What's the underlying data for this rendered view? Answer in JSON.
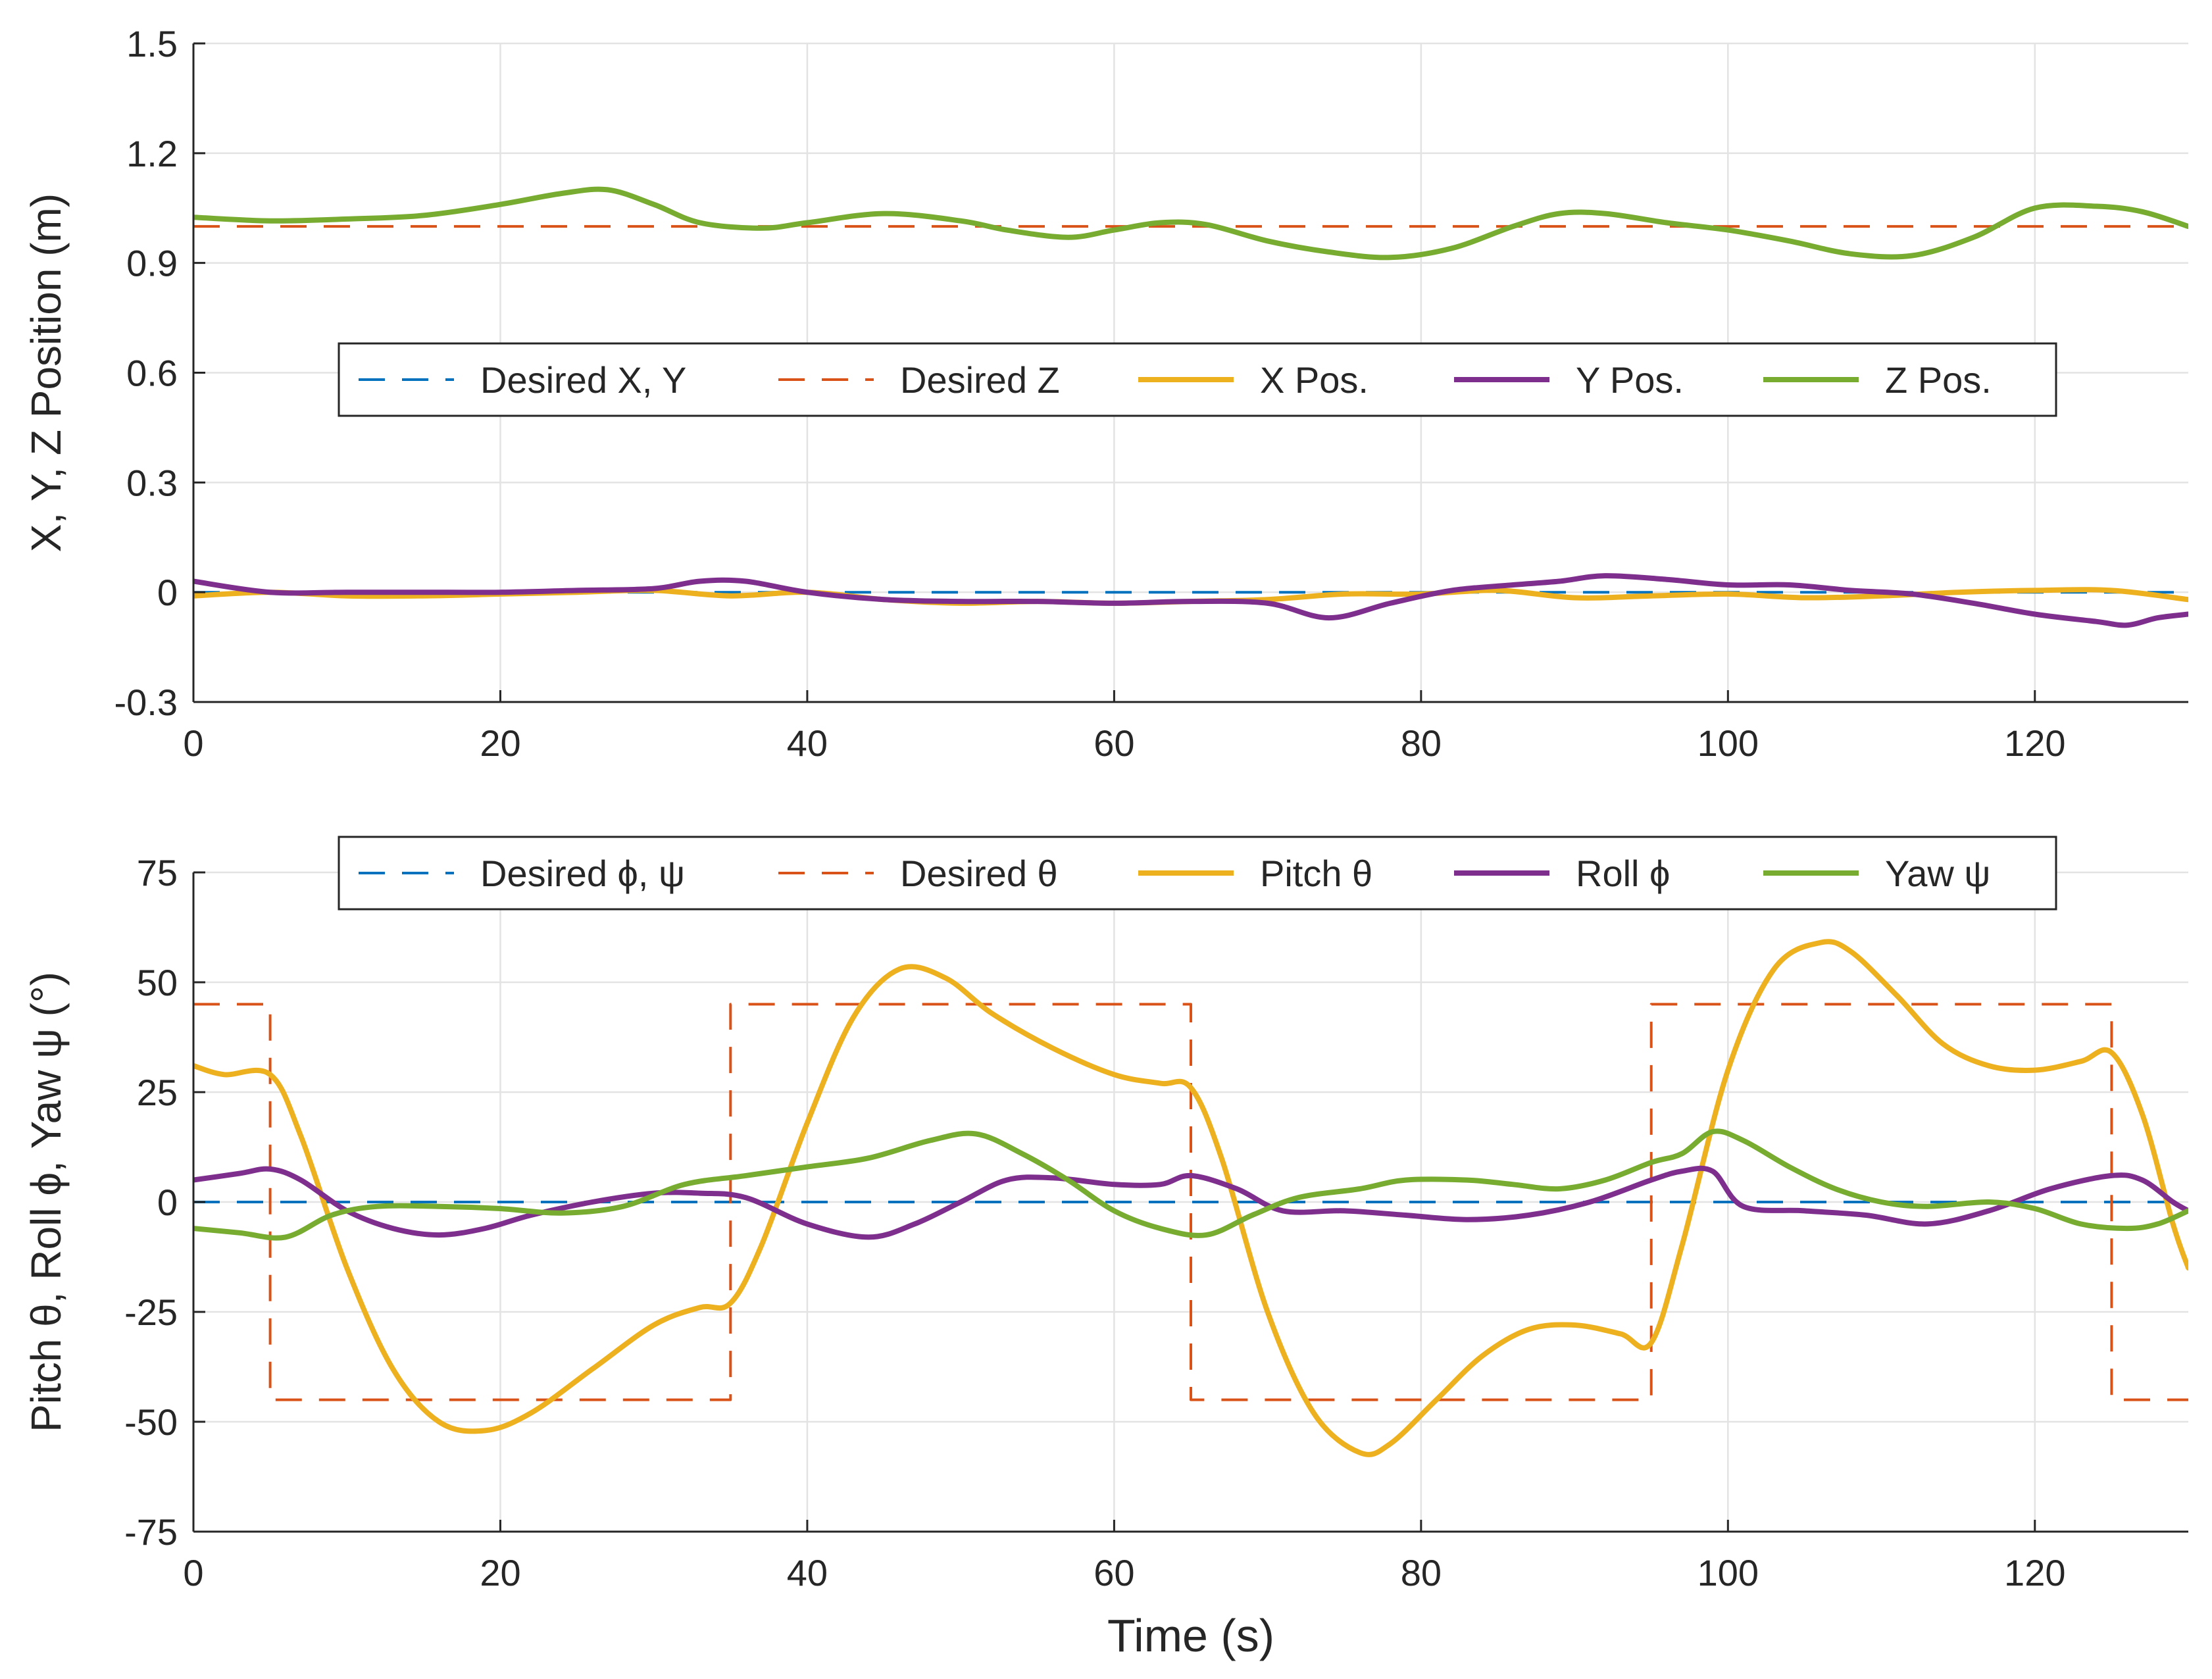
{
  "chart_data": [
    {
      "id": "position",
      "type": "line",
      "title": "",
      "xlabel": "",
      "ylabel": "X, Y, Z Position (m)",
      "xlim": [
        0,
        130
      ],
      "ylim": [
        -0.3,
        1.5
      ],
      "xticks": [
        0,
        20,
        40,
        60,
        80,
        100,
        120
      ],
      "xtick_labels": [
        "0",
        "20",
        "40",
        "60",
        "80",
        "100",
        "120"
      ],
      "yticks": [
        -0.3,
        0,
        0.3,
        0.6,
        0.9,
        1.2,
        1.5
      ],
      "ytick_labels": [
        "-0.3",
        "0",
        "0.3",
        "0.6",
        "0.9",
        "1.2",
        "1.5"
      ],
      "grid": true,
      "legend_location": "center",
      "series": [
        {
          "name": "Desired X, Y",
          "style": "dashed",
          "color": "#0072BD",
          "x": [
            0,
            130
          ],
          "y": [
            0,
            0
          ]
        },
        {
          "name": "Desired Z",
          "style": "dashed",
          "color": "#D95319",
          "x": [
            0,
            130
          ],
          "y": [
            1.0,
            1.0
          ]
        },
        {
          "name": "X Pos.",
          "style": "solid",
          "color": "#EDB120",
          "x": [
            0,
            5,
            10,
            15,
            20,
            25,
            30,
            35,
            40,
            45,
            50,
            55,
            60,
            65,
            70,
            75,
            80,
            85,
            90,
            95,
            100,
            105,
            110,
            115,
            120,
            125,
            130
          ],
          "y": [
            -0.01,
            0.0,
            -0.01,
            -0.01,
            -0.005,
            0.0,
            0.005,
            -0.01,
            0.0,
            -0.02,
            -0.03,
            -0.025,
            -0.03,
            -0.025,
            -0.02,
            -0.005,
            -0.005,
            0.005,
            -0.015,
            -0.01,
            -0.005,
            -0.015,
            -0.01,
            0.0,
            0.005,
            0.005,
            -0.02
          ]
        },
        {
          "name": "Y Pos.",
          "style": "solid",
          "color": "#7E2F8E",
          "x": [
            0,
            5,
            10,
            15,
            20,
            25,
            30,
            33,
            36,
            40,
            45,
            50,
            55,
            60,
            65,
            70,
            74,
            78,
            82,
            86,
            89,
            92,
            96,
            100,
            104,
            108,
            112,
            116,
            120,
            124,
            126,
            128,
            130
          ],
          "y": [
            0.03,
            0.0,
            0.0,
            0.0,
            0.0,
            0.005,
            0.01,
            0.03,
            0.03,
            0.0,
            -0.02,
            -0.025,
            -0.025,
            -0.03,
            -0.025,
            -0.03,
            -0.07,
            -0.03,
            0.005,
            0.02,
            0.03,
            0.045,
            0.035,
            0.02,
            0.02,
            0.005,
            -0.005,
            -0.03,
            -0.06,
            -0.08,
            -0.09,
            -0.07,
            -0.06
          ]
        },
        {
          "name": "Z Pos.",
          "style": "solid",
          "color": "#77AC30",
          "x": [
            0,
            5,
            10,
            15,
            20,
            24,
            27,
            30,
            33,
            37,
            40,
            45,
            50,
            53,
            57,
            60,
            63,
            66,
            70,
            74,
            78,
            82,
            86,
            89,
            92,
            96,
            100,
            104,
            108,
            112,
            116,
            120,
            124,
            127,
            130
          ],
          "y": [
            1.025,
            1.015,
            1.02,
            1.03,
            1.06,
            1.09,
            1.1,
            1.06,
            1.01,
            0.995,
            1.01,
            1.035,
            1.015,
            0.99,
            0.97,
            0.99,
            1.01,
            1.005,
            0.96,
            0.93,
            0.915,
            0.94,
            1.0,
            1.035,
            1.035,
            1.01,
            0.99,
            0.96,
            0.925,
            0.92,
            0.97,
            1.05,
            1.055,
            1.04,
            1.0
          ]
        }
      ]
    },
    {
      "id": "attitude",
      "type": "line",
      "title": "",
      "xlabel": "Time (s)",
      "ylabel": "Pitch θ, Roll ϕ, Yaw ψ (°)",
      "xlim": [
        0,
        130
      ],
      "ylim": [
        -75,
        75
      ],
      "xticks": [
        0,
        20,
        40,
        60,
        80,
        100,
        120
      ],
      "xtick_labels": [
        "0",
        "20",
        "40",
        "60",
        "80",
        "100",
        "120"
      ],
      "yticks": [
        -75,
        -50,
        -25,
        0,
        25,
        50,
        75
      ],
      "ytick_labels": [
        "-75",
        "-50",
        "-25",
        "0",
        "25",
        "50",
        "75"
      ],
      "grid": true,
      "legend_location": "top",
      "series": [
        {
          "name": "Desired ϕ, ψ",
          "style": "dashed",
          "color": "#0072BD",
          "x": [
            0,
            130
          ],
          "y": [
            0,
            0
          ]
        },
        {
          "name": "Desired θ",
          "style": "dashed",
          "color": "#D95319",
          "x": [
            0,
            5,
            5,
            35,
            35,
            65,
            65,
            95,
            95,
            125,
            125,
            130
          ],
          "y": [
            45,
            45,
            -45,
            -45,
            45,
            45,
            -45,
            -45,
            45,
            45,
            -45,
            -45
          ]
        },
        {
          "name": "Pitch θ",
          "style": "solid",
          "color": "#EDB120",
          "x": [
            0,
            2,
            5,
            7,
            10,
            13,
            16,
            19,
            22,
            26,
            30,
            33,
            35,
            37,
            40,
            43,
            46,
            49,
            52,
            56,
            60,
            63,
            65,
            67,
            70,
            73,
            76,
            78,
            81,
            84,
            87,
            90,
            93,
            95,
            97,
            100,
            103,
            106,
            108,
            111,
            114,
            117,
            120,
            123,
            125,
            127,
            129,
            130
          ],
          "y": [
            31,
            29,
            29,
            15,
            -15,
            -38,
            -50,
            -52,
            -48,
            -38,
            -28,
            -24,
            -23,
            -10,
            18,
            42,
            53,
            51,
            43,
            35,
            29,
            27,
            26,
            10,
            -25,
            -48,
            -57,
            -55,
            -45,
            -35,
            -29,
            -28,
            -30,
            -32,
            -10,
            30,
            53,
            59,
            57,
            47,
            36,
            31,
            30,
            32,
            34,
            20,
            -5,
            -15
          ]
        },
        {
          "name": "Roll ϕ",
          "style": "solid",
          "color": "#7E2F8E",
          "x": [
            0,
            3,
            5,
            7,
            10,
            13,
            16,
            19,
            22,
            26,
            30,
            33,
            36,
            40,
            44,
            47,
            50,
            53,
            56,
            60,
            63,
            65,
            68,
            71,
            75,
            79,
            83,
            87,
            91,
            95,
            97,
            99,
            101,
            105,
            109,
            113,
            117,
            121,
            125,
            127,
            129,
            130
          ],
          "y": [
            5,
            6.5,
            7.5,
            5,
            -2,
            -6,
            -7.5,
            -6,
            -3,
            0,
            2,
            2,
            1,
            -5,
            -8,
            -5,
            0,
            5,
            5.5,
            4,
            4,
            6,
            3,
            -2,
            -2,
            -3,
            -4,
            -3,
            0,
            5,
            7,
            7,
            -1,
            -2,
            -3,
            -5,
            -2,
            3,
            6,
            5,
            0,
            -2
          ]
        },
        {
          "name": "Yaw ψ",
          "style": "solid",
          "color": "#77AC30",
          "x": [
            0,
            3,
            6,
            9,
            12,
            16,
            20,
            24,
            28,
            32,
            36,
            40,
            44,
            48,
            51,
            54,
            57,
            60,
            63,
            66,
            69,
            72,
            76,
            79,
            83,
            86,
            89,
            92,
            95,
            97,
            99,
            101,
            104,
            107,
            110,
            113,
            117,
            120,
            123,
            126,
            128,
            130
          ],
          "y": [
            -6,
            -7,
            -8,
            -3,
            -1,
            -1,
            -1.5,
            -2.5,
            -1,
            4,
            6,
            8,
            10,
            14,
            15.5,
            11,
            5,
            -2,
            -6,
            -7.5,
            -3,
            1,
            3,
            5,
            5,
            4,
            3,
            5,
            9,
            11,
            16,
            14,
            8,
            3,
            0,
            -1,
            0,
            -1.5,
            -5,
            -6,
            -5,
            -2
          ]
        }
      ]
    }
  ]
}
